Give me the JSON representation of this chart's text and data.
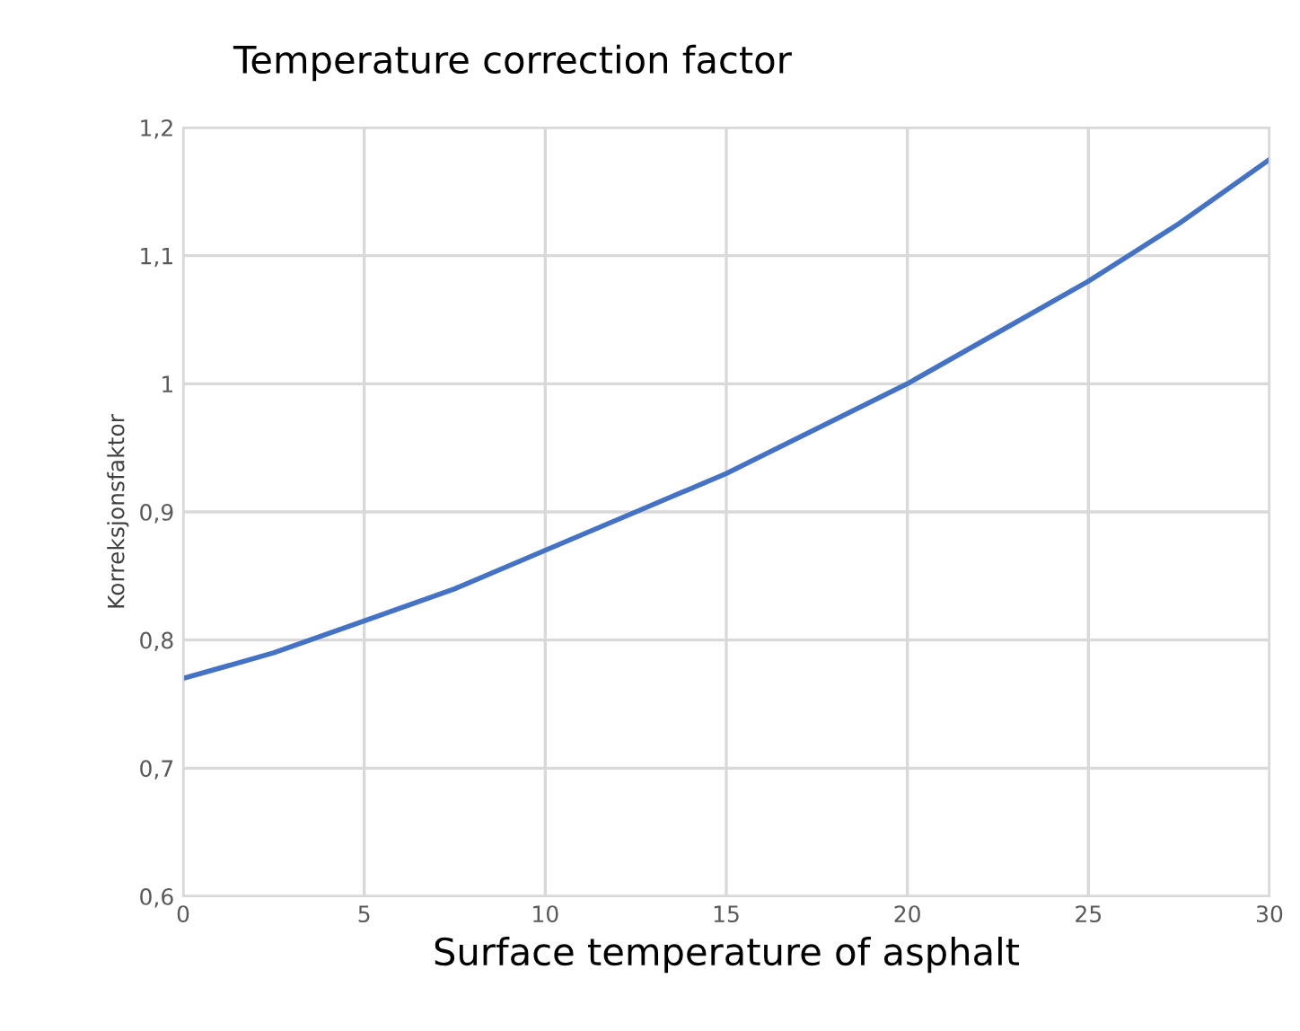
{
  "chart_data": {
    "type": "line",
    "title": "Temperature correction factor",
    "xlabel": "Surface temperature of asphalt",
    "ylabel": "Korreksjonsfaktor",
    "x": [
      0,
      2.5,
      5,
      7.5,
      10,
      12.5,
      15,
      17.5,
      20,
      22.5,
      25,
      27.5,
      30
    ],
    "series": [
      {
        "color": "#4472c4",
        "values": [
          0.77,
          0.79,
          0.815,
          0.84,
          0.87,
          0.9,
          0.93,
          0.965,
          1.0,
          1.04,
          1.08,
          1.125,
          1.175
        ]
      }
    ],
    "xlim": [
      0,
      30
    ],
    "xticks": [
      0,
      5,
      10,
      15,
      20,
      25,
      30
    ],
    "ylim": [
      0.6,
      1.2
    ],
    "yticks": [
      {
        "value": 0.6,
        "label": "0,6"
      },
      {
        "value": 0.7,
        "label": "0,7"
      },
      {
        "value": 0.8,
        "label": "0,8"
      },
      {
        "value": 0.9,
        "label": "0,9"
      },
      1,
      {
        "value": 1.1,
        "label": "1,1"
      },
      {
        "value": 1.2,
        "label": "1,2"
      }
    ],
    "grid": true,
    "marker": "none",
    "line_style": "solid"
  }
}
